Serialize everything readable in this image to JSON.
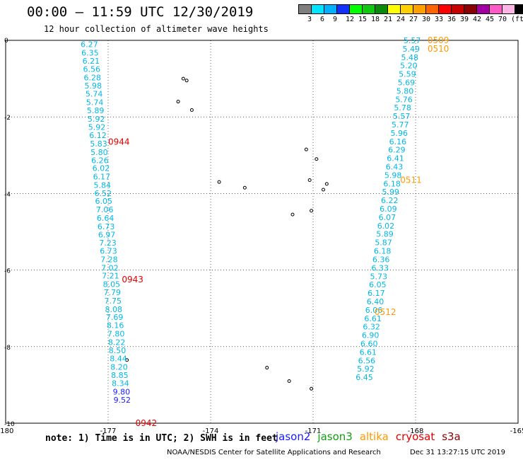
{
  "header": {
    "title": "00:00 – 11:59 UTC 12/30/2019",
    "subtitle": "12 hour collection of altimeter wave heights"
  },
  "colorbar": {
    "colors": [
      "#7f7f7f",
      "#00e5ff",
      "#00b0ff",
      "#1430ff",
      "#00ff00",
      "#10c810",
      "#0a8a0a",
      "#ffff00",
      "#ffd000",
      "#ffa000",
      "#ff6400",
      "#ff0000",
      "#c80000",
      "#8b0000",
      "#a000a0",
      "#ff5ac8",
      "#ffb4e6",
      "#000000"
    ],
    "labels": [
      "3",
      "6",
      "9",
      "12",
      "15",
      "18",
      "21",
      "24",
      "27",
      "30",
      "33",
      "36",
      "39",
      "42",
      "45",
      "70",
      "(ft)"
    ]
  },
  "chart_data": {
    "type": "scatter",
    "xlim": [
      -180,
      -165
    ],
    "ylim": [
      -10,
      0
    ],
    "x_ticks": [
      "-180",
      "-177",
      "-174",
      "-171",
      "-168",
      "-165"
    ],
    "y_ticks": [
      "0",
      "-2",
      "-4",
      "-6",
      "-8",
      "-10"
    ],
    "grid": true,
    "colors": {
      "cyan": "#00b8e6",
      "blue": "#1a1aff",
      "orange": "#ff9900",
      "red": "#e00000"
    },
    "tracks": [
      {
        "name": "cryosat",
        "color": "red",
        "times": [
          {
            "label": "0944",
            "x": -177.0,
            "y": -2.65
          },
          {
            "label": "0943",
            "x": -176.6,
            "y": -6.25
          },
          {
            "label": "0942",
            "x": -176.2,
            "y": -10.0
          }
        ],
        "points": [
          {
            "x": -177.55,
            "y": -0.1,
            "v": "6.27",
            "c": "cyan"
          },
          {
            "x": -177.53,
            "y": -0.32,
            "v": "6.35",
            "c": "cyan"
          },
          {
            "x": -177.5,
            "y": -0.54,
            "v": "6.21",
            "c": "cyan"
          },
          {
            "x": -177.48,
            "y": -0.75,
            "v": "6.56",
            "c": "cyan"
          },
          {
            "x": -177.46,
            "y": -0.97,
            "v": "6.28",
            "c": "cyan"
          },
          {
            "x": -177.44,
            "y": -1.18,
            "v": "5.98",
            "c": "cyan"
          },
          {
            "x": -177.41,
            "y": -1.4,
            "v": "5.74",
            "c": "cyan"
          },
          {
            "x": -177.39,
            "y": -1.62,
            "v": "5.74",
            "c": "cyan"
          },
          {
            "x": -177.37,
            "y": -1.83,
            "v": "5.89",
            "c": "cyan"
          },
          {
            "x": -177.35,
            "y": -2.05,
            "v": "5.92",
            "c": "cyan"
          },
          {
            "x": -177.33,
            "y": -2.26,
            "v": "5.92",
            "c": "cyan"
          },
          {
            "x": -177.3,
            "y": -2.48,
            "v": "6.12",
            "c": "cyan"
          },
          {
            "x": -177.28,
            "y": -2.7,
            "v": "5.83",
            "c": "cyan"
          },
          {
            "x": -177.26,
            "y": -2.92,
            "v": "5.80",
            "c": "cyan"
          },
          {
            "x": -177.24,
            "y": -3.13,
            "v": "6.26",
            "c": "cyan"
          },
          {
            "x": -177.21,
            "y": -3.34,
            "v": "6.02",
            "c": "cyan"
          },
          {
            "x": -177.19,
            "y": -3.56,
            "v": "6.17",
            "c": "cyan"
          },
          {
            "x": -177.17,
            "y": -3.78,
            "v": "5.84",
            "c": "cyan"
          },
          {
            "x": -177.15,
            "y": -3.99,
            "v": "6.52",
            "c": "cyan"
          },
          {
            "x": -177.13,
            "y": -4.2,
            "v": "6.05",
            "c": "cyan"
          },
          {
            "x": -177.1,
            "y": -4.42,
            "v": "7.06",
            "c": "cyan"
          },
          {
            "x": -177.08,
            "y": -4.64,
            "v": "6.64",
            "c": "cyan"
          },
          {
            "x": -177.06,
            "y": -4.86,
            "v": "6.73",
            "c": "cyan"
          },
          {
            "x": -177.04,
            "y": -5.07,
            "v": "6.97",
            "c": "cyan"
          },
          {
            "x": -177.01,
            "y": -5.29,
            "v": "7.23",
            "c": "cyan"
          },
          {
            "x": -176.99,
            "y": -5.5,
            "v": "6.73",
            "c": "cyan"
          },
          {
            "x": -176.97,
            "y": -5.72,
            "v": "7.28",
            "c": "cyan"
          },
          {
            "x": -176.95,
            "y": -5.94,
            "v": "7.02",
            "c": "cyan"
          },
          {
            "x": -176.93,
            "y": -6.15,
            "v": "7.21",
            "c": "cyan"
          },
          {
            "x": -176.9,
            "y": -6.37,
            "v": "8.05",
            "c": "cyan"
          },
          {
            "x": -176.88,
            "y": -6.58,
            "v": "7.79",
            "c": "cyan"
          },
          {
            "x": -176.86,
            "y": -6.8,
            "v": "7.75",
            "c": "cyan"
          },
          {
            "x": -176.84,
            "y": -7.02,
            "v": "8.08",
            "c": "cyan"
          },
          {
            "x": -176.81,
            "y": -7.23,
            "v": "7.69",
            "c": "cyan"
          },
          {
            "x": -176.79,
            "y": -7.44,
            "v": "8.16",
            "c": "cyan"
          },
          {
            "x": -176.77,
            "y": -7.66,
            "v": "7.80",
            "c": "cyan"
          },
          {
            "x": -176.75,
            "y": -7.88,
            "v": "8.22",
            "c": "cyan"
          },
          {
            "x": -176.73,
            "y": -8.1,
            "v": "8.50",
            "c": "cyan"
          },
          {
            "x": -176.7,
            "y": -8.31,
            "v": "8.44",
            "c": "cyan"
          },
          {
            "x": -176.68,
            "y": -8.53,
            "v": "8.20",
            "c": "cyan"
          },
          {
            "x": -176.66,
            "y": -8.74,
            "v": "8.85",
            "c": "cyan"
          },
          {
            "x": -176.64,
            "y": -8.96,
            "v": "8.34",
            "c": "cyan"
          },
          {
            "x": -176.61,
            "y": -9.18,
            "v": "9.80",
            "c": "blue"
          },
          {
            "x": -176.59,
            "y": -9.39,
            "v": "9.52",
            "c": "blue"
          }
        ]
      },
      {
        "name": "altika",
        "color": "orange",
        "times": [
          {
            "label": "0509",
            "x": -167.65,
            "y": 0.0
          },
          {
            "label": "0510",
            "x": -167.65,
            "y": -0.22
          },
          {
            "label": "0511",
            "x": -168.45,
            "y": -3.65
          },
          {
            "label": "0512",
            "x": -169.2,
            "y": -7.1
          }
        ],
        "points": [
          {
            "x": -168.1,
            "y": 0.0,
            "v": "5.57",
            "c": "cyan"
          },
          {
            "x": -168.13,
            "y": -0.22,
            "v": "5.49",
            "c": "cyan"
          },
          {
            "x": -168.17,
            "y": -0.44,
            "v": "5.48",
            "c": "cyan"
          },
          {
            "x": -168.2,
            "y": -0.66,
            "v": "5.20",
            "c": "cyan"
          },
          {
            "x": -168.24,
            "y": -0.88,
            "v": "5.59",
            "c": "cyan"
          },
          {
            "x": -168.27,
            "y": -1.1,
            "v": "5.69",
            "c": "cyan"
          },
          {
            "x": -168.31,
            "y": -1.32,
            "v": "5.80",
            "c": "cyan"
          },
          {
            "x": -168.34,
            "y": -1.54,
            "v": "5.76",
            "c": "cyan"
          },
          {
            "x": -168.38,
            "y": -1.76,
            "v": "5.78",
            "c": "cyan"
          },
          {
            "x": -168.41,
            "y": -1.98,
            "v": "5.57",
            "c": "cyan"
          },
          {
            "x": -168.45,
            "y": -2.2,
            "v": "5.77",
            "c": "cyan"
          },
          {
            "x": -168.48,
            "y": -2.42,
            "v": "5.96",
            "c": "cyan"
          },
          {
            "x": -168.52,
            "y": -2.64,
            "v": "6.16",
            "c": "cyan"
          },
          {
            "x": -168.55,
            "y": -2.86,
            "v": "6.29",
            "c": "cyan"
          },
          {
            "x": -168.59,
            "y": -3.08,
            "v": "6.41",
            "c": "cyan"
          },
          {
            "x": -168.62,
            "y": -3.3,
            "v": "6.43",
            "c": "cyan"
          },
          {
            "x": -168.66,
            "y": -3.52,
            "v": "5.98",
            "c": "cyan"
          },
          {
            "x": -168.69,
            "y": -3.74,
            "v": "6.18",
            "c": "cyan"
          },
          {
            "x": -168.73,
            "y": -3.96,
            "v": "5.99",
            "c": "cyan"
          },
          {
            "x": -168.76,
            "y": -4.18,
            "v": "6.22",
            "c": "cyan"
          },
          {
            "x": -168.8,
            "y": -4.4,
            "v": "6.09",
            "c": "cyan"
          },
          {
            "x": -168.83,
            "y": -4.62,
            "v": "6.07",
            "c": "cyan"
          },
          {
            "x": -168.87,
            "y": -4.84,
            "v": "6.02",
            "c": "cyan"
          },
          {
            "x": -168.9,
            "y": -5.06,
            "v": "5.89",
            "c": "cyan"
          },
          {
            "x": -168.94,
            "y": -5.28,
            "v": "5.87",
            "c": "cyan"
          },
          {
            "x": -168.97,
            "y": -5.5,
            "v": "6.18",
            "c": "cyan"
          },
          {
            "x": -169.01,
            "y": -5.72,
            "v": "6.36",
            "c": "cyan"
          },
          {
            "x": -169.04,
            "y": -5.94,
            "v": "6.33",
            "c": "cyan"
          },
          {
            "x": -169.08,
            "y": -6.16,
            "v": "5.73",
            "c": "cyan"
          },
          {
            "x": -169.11,
            "y": -6.38,
            "v": "6.05",
            "c": "cyan"
          },
          {
            "x": -169.15,
            "y": -6.6,
            "v": "6.17",
            "c": "cyan"
          },
          {
            "x": -169.18,
            "y": -6.82,
            "v": "6.40",
            "c": "cyan"
          },
          {
            "x": -169.22,
            "y": -7.04,
            "v": "6.06",
            "c": "cyan"
          },
          {
            "x": -169.25,
            "y": -7.26,
            "v": "6.61",
            "c": "cyan"
          },
          {
            "x": -169.29,
            "y": -7.48,
            "v": "6.32",
            "c": "cyan"
          },
          {
            "x": -169.32,
            "y": -7.7,
            "v": "6.90",
            "c": "cyan"
          },
          {
            "x": -169.36,
            "y": -7.92,
            "v": "6.60",
            "c": "cyan"
          },
          {
            "x": -169.39,
            "y": -8.14,
            "v": "6.61",
            "c": "cyan"
          },
          {
            "x": -169.43,
            "y": -8.36,
            "v": "6.56",
            "c": "cyan"
          },
          {
            "x": -169.46,
            "y": -8.58,
            "v": "5.92",
            "c": "cyan"
          },
          {
            "x": -169.5,
            "y": -8.8,
            "v": "6.45",
            "c": "cyan"
          }
        ]
      }
    ],
    "islands": [
      {
        "x": -174.8,
        "y": -1.0
      },
      {
        "x": -174.7,
        "y": -1.05
      },
      {
        "x": -174.95,
        "y": -1.6
      },
      {
        "x": -174.55,
        "y": -1.82
      },
      {
        "x": -173.75,
        "y": -3.7
      },
      {
        "x": -173.0,
        "y": -3.85
      },
      {
        "x": -171.2,
        "y": -2.85
      },
      {
        "x": -170.9,
        "y": -3.1
      },
      {
        "x": -171.1,
        "y": -3.65
      },
      {
        "x": -170.6,
        "y": -3.75
      },
      {
        "x": -170.7,
        "y": -3.9
      },
      {
        "x": -171.6,
        "y": -4.55
      },
      {
        "x": -171.05,
        "y": -4.45
      },
      {
        "x": -172.35,
        "y": -8.55
      },
      {
        "x": -171.7,
        "y": -8.9
      },
      {
        "x": -171.05,
        "y": -9.1
      },
      {
        "x": -176.45,
        "y": -8.35
      }
    ]
  },
  "note": "note: 1) Time is in UTC; 2) SWH is in feet",
  "satellites": [
    {
      "name": "jason2",
      "color": "#1a1aff"
    },
    {
      "name": "jason3",
      "color": "#10a010"
    },
    {
      "name": "altika",
      "color": "#ff9900"
    },
    {
      "name": "cryosat",
      "color": "#e00000"
    },
    {
      "name": "s3a",
      "color": "#8b0000"
    }
  ],
  "footer": "NOAA/NESDIS Center for Satellite Applications and Research",
  "timestamp": "Dec 31 13:27:15 UTC 2019"
}
